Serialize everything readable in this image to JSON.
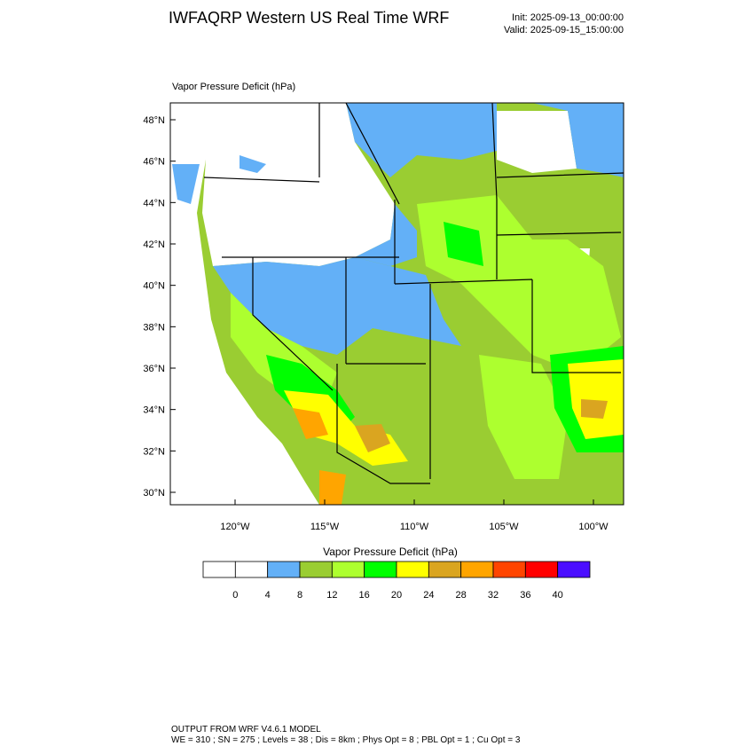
{
  "header": {
    "title": "IWFAQRP Western US Real Time WRF",
    "init": "Init: 2025-09-13_00:00:00",
    "valid": "Valid: 2025-09-15_15:00:00"
  },
  "map": {
    "label": "Vapor Pressure Deficit   (hPa)",
    "lat_labels": [
      "48°N",
      "46°N",
      "44°N",
      "42°N",
      "40°N",
      "38°N",
      "36°N",
      "34°N",
      "32°N",
      "30°N"
    ],
    "lon_labels": [
      "120°W",
      "115°W",
      "110°W",
      "105°W",
      "100°W"
    ]
  },
  "colorbar": {
    "title": "Vapor Pressure Deficit  (hPa)",
    "colors": [
      "#ffffff",
      "#ffffff",
      "#63b0f7",
      "#9acd32",
      "#adff2f",
      "#00ff00",
      "#ffff00",
      "#daa520",
      "#ffa500",
      "#ff4500",
      "#ff0000",
      "#4b0fff"
    ],
    "labels": [
      0,
      4,
      8,
      12,
      16,
      20,
      24,
      28,
      32,
      36,
      40
    ]
  },
  "footer": {
    "line1": "OUTPUT FROM WRF V4.6.1 MODEL",
    "line2": "WE = 310 ; SN = 275 ; Levels = 38 ; Dis = 8km ; Phys Opt = 8 ; PBL Opt = 1 ; Cu Opt = 3"
  }
}
